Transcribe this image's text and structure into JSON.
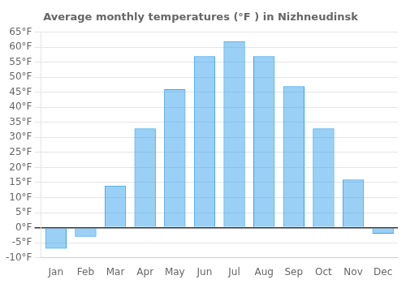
{
  "chart_data": {
    "type": "bar",
    "title": "Average monthly temperatures (°F ) in Nizhneudinsk",
    "categories": [
      "Jan",
      "Feb",
      "Mar",
      "Apr",
      "May",
      "Jun",
      "Jul",
      "Aug",
      "Sep",
      "Oct",
      "Nov",
      "Dec"
    ],
    "values": [
      -7,
      -3,
      14,
      33,
      46,
      57,
      62,
      57,
      47,
      33,
      16,
      -2
    ],
    "ylim": [
      -10,
      65
    ],
    "yticks": [
      {
        "value": -10,
        "label": "-10°F"
      },
      {
        "value": -5,
        "label": "-5°F"
      },
      {
        "value": 0,
        "label": "0°F"
      },
      {
        "value": 5,
        "label": "5°F"
      },
      {
        "value": 10,
        "label": "10°F"
      },
      {
        "value": 15,
        "label": "15°F"
      },
      {
        "value": 20,
        "label": "20°F"
      },
      {
        "value": 25,
        "label": "25°F"
      },
      {
        "value": 30,
        "label": "30°F"
      },
      {
        "value": 35,
        "label": "35°F"
      },
      {
        "value": 40,
        "label": "40°F"
      },
      {
        "value": 45,
        "label": "45°F"
      },
      {
        "value": 50,
        "label": "50°F"
      },
      {
        "value": 55,
        "label": "55°F"
      },
      {
        "value": 60,
        "label": "60°F"
      },
      {
        "value": 65,
        "label": "65°F"
      }
    ],
    "grid": true
  }
}
